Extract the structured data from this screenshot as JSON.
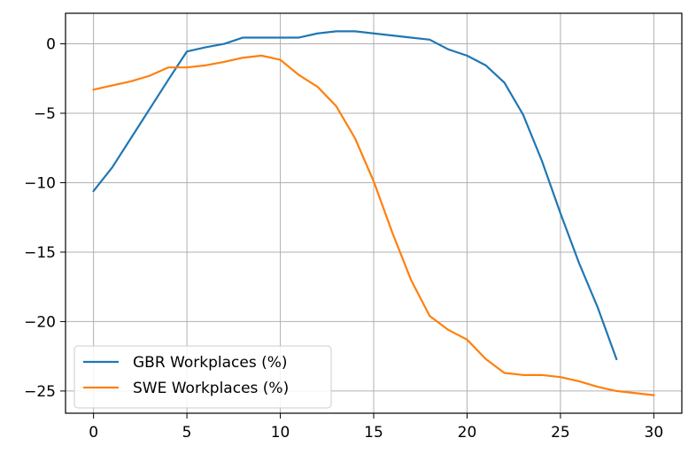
{
  "chart_data": {
    "type": "line",
    "title": "",
    "xlabel": "",
    "ylabel": "",
    "xlim": [
      -1.5,
      31.5
    ],
    "ylim": [
      -26.6,
      2.2
    ],
    "grid": true,
    "legend_position": "lower-left",
    "x_ticks": [
      0,
      5,
      10,
      15,
      20,
      25,
      30
    ],
    "x_tick_labels": [
      "0",
      "5",
      "10",
      "15",
      "20",
      "25",
      "30"
    ],
    "y_ticks": [
      0,
      -5,
      -10,
      -15,
      -20,
      -25
    ],
    "y_tick_labels": [
      "0",
      "−5",
      "−10",
      "−15",
      "−20",
      "−25"
    ],
    "series": [
      {
        "name": "GBR Workplaces (%)",
        "color": "#1f77b4",
        "x": [
          0,
          1,
          2,
          3,
          4,
          5,
          6,
          7,
          8,
          9,
          10,
          11,
          12,
          13,
          14,
          15,
          16,
          17,
          18,
          19,
          20,
          21,
          22,
          23,
          24,
          25,
          26,
          27,
          28
        ],
        "values": [
          -10.6,
          -8.9,
          -6.8,
          -4.7,
          -2.6,
          -0.55,
          -0.25,
          0.0,
          0.45,
          0.45,
          0.45,
          0.45,
          0.75,
          0.9,
          0.9,
          0.75,
          0.6,
          0.45,
          0.3,
          -0.4,
          -0.85,
          -1.55,
          -2.8,
          -5.1,
          -8.4,
          -12.2,
          -15.8,
          -19.0,
          -22.7
        ]
      },
      {
        "name": "SWE Workplaces (%)",
        "color": "#ff7f0e",
        "x": [
          0,
          1,
          2,
          3,
          4,
          5,
          6,
          7,
          8,
          9,
          10,
          11,
          12,
          13,
          14,
          15,
          16,
          17,
          18,
          19,
          20,
          21,
          22,
          23,
          24,
          25,
          26,
          27,
          28,
          29,
          30
        ],
        "values": [
          -3.3,
          -3.0,
          -2.7,
          -2.3,
          -1.7,
          -1.7,
          -1.55,
          -1.3,
          -1.0,
          -0.85,
          -1.15,
          -2.25,
          -3.1,
          -4.5,
          -6.8,
          -9.9,
          -13.6,
          -17.0,
          -19.6,
          -20.6,
          -21.3,
          -22.7,
          -23.7,
          -23.85,
          -23.85,
          -24.0,
          -24.3,
          -24.7,
          -25.0,
          -25.15,
          -25.3
        ]
      }
    ]
  }
}
